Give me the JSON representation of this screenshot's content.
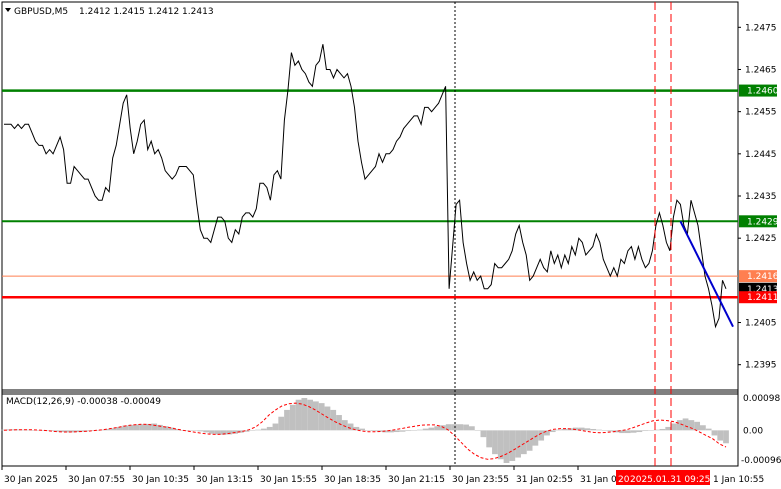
{
  "header": {
    "symbol": "GBPUSD,M5",
    "ohlc": "1.2412 1.2415 1.2412 1.2413",
    "dropdown_icon": "triangle-down-icon"
  },
  "macd": {
    "label": "MACD(12,26,9) -0.00038 -0.00049",
    "scale_top": "0.00098",
    "scale_mid": "0.00",
    "scale_bottom": "-0.00096"
  },
  "price_axis": {
    "ticks": [
      "1.2475",
      "1.2465",
      "1.2455",
      "1.2445",
      "1.2435",
      "1.2425",
      "1.2405",
      "1.2395"
    ],
    "badges": [
      {
        "text": "1.2460",
        "bg": "#008000",
        "fg": "#ffffff"
      },
      {
        "text": "1.2429",
        "bg": "#008000",
        "fg": "#ffffff"
      },
      {
        "text": "1.2416",
        "bg": "#ff7f50",
        "fg": "#ffffff"
      },
      {
        "text": "1.2413",
        "bg": "#000000",
        "fg": "#ffffff"
      },
      {
        "text": "1.2411",
        "bg": "#ff0000",
        "fg": "#ffffff"
      }
    ]
  },
  "time_axis": {
    "labels": [
      "30 Jan 2025",
      "30 Jan 07:55",
      "30 Jan 10:35",
      "30 Jan 13:15",
      "30 Jan 15:55",
      "30 Jan 18:35",
      "30 Jan 21:15",
      "30 Jan 23:55",
      "31 Jan 02:55",
      "31 Jan 05:"
    ],
    "highlight_left": "20",
    "highlight": "2025.01.31 09:25",
    "last_label": "1 Jan 10:55"
  },
  "chart_data": {
    "type": "line",
    "ylim": [
      1.2389,
      1.2481
    ],
    "levels": [
      {
        "price": 1.246,
        "color": "#008000"
      },
      {
        "price": 1.2429,
        "color": "#008000"
      },
      {
        "price": 1.2416,
        "color": "#ff7f50"
      },
      {
        "price": 1.2411,
        "color": "#ff0000"
      }
    ],
    "price_series": [
      1.2452,
      1.2452,
      1.2452,
      1.2451,
      1.2452,
      1.2451,
      1.2452,
      1.2452,
      1.245,
      1.2448,
      1.2447,
      1.2447,
      1.2445,
      1.2446,
      1.2445,
      1.2447,
      1.2449,
      1.2446,
      1.2438,
      1.2438,
      1.2442,
      1.2441,
      1.244,
      1.2439,
      1.2439,
      1.2437,
      1.2435,
      1.2434,
      1.2434,
      1.2437,
      1.2436,
      1.2444,
      1.2447,
      1.2452,
      1.2457,
      1.2459,
      1.2451,
      1.2445,
      1.2448,
      1.2452,
      1.2453,
      1.2446,
      1.2448,
      1.2445,
      1.2446,
      1.2444,
      1.2441,
      1.244,
      1.2439,
      1.244,
      1.2442,
      1.2442,
      1.2442,
      1.2441,
      1.244,
      1.2433,
      1.2427,
      1.2425,
      1.2425,
      1.2424,
      1.2427,
      1.243,
      1.243,
      1.2429,
      1.2425,
      1.2424,
      1.2427,
      1.2426,
      1.243,
      1.2431,
      1.2431,
      1.243,
      1.2432,
      1.2438,
      1.2438,
      1.2437,
      1.2434,
      1.244,
      1.2441,
      1.2439,
      1.2453,
      1.246,
      1.2469,
      1.2466,
      1.2467,
      1.2465,
      1.2464,
      1.2462,
      1.2461,
      1.2466,
      1.2467,
      1.2471,
      1.2465,
      1.2465,
      1.2463,
      1.2465,
      1.2464,
      1.2463,
      1.2464,
      1.2461,
      1.2456,
      1.2448,
      1.2443,
      1.2439,
      1.244,
      1.2441,
      1.2442,
      1.2445,
      1.2443,
      1.2445,
      1.2445,
      1.2446,
      1.2448,
      1.2449,
      1.2451,
      1.2452,
      1.2453,
      1.2454,
      1.2454,
      1.2452,
      1.2456,
      1.2456,
      1.2455,
      1.2456,
      1.2457,
      1.2459,
      1.2461,
      1.2413,
      1.2423,
      1.2433,
      1.2434,
      1.2424,
      1.2419,
      1.2415,
      1.2417,
      1.2415,
      1.2416,
      1.2413,
      1.2413,
      1.2414,
      1.2419,
      1.2418,
      1.2418,
      1.2419,
      1.242,
      1.2422,
      1.2426,
      1.2428,
      1.2424,
      1.2421,
      1.2415,
      1.2416,
      1.2418,
      1.242,
      1.2418,
      1.2417,
      1.2422,
      1.2419,
      1.2421,
      1.2418,
      1.2421,
      1.2419,
      1.2423,
      1.2421,
      1.2425,
      1.2424,
      1.2421,
      1.2422,
      1.2423,
      1.2426,
      1.2424,
      1.242,
      1.2418,
      1.2416,
      1.2418,
      1.2416,
      1.242,
      1.2419,
      1.2422,
      1.2423,
      1.242,
      1.2423,
      1.242,
      1.2418,
      1.2419,
      1.2422,
      1.2428,
      1.2431,
      1.2428,
      1.2424,
      1.2422,
      1.243,
      1.2434,
      1.2433,
      1.2428,
      1.2426,
      1.2434,
      1.2431,
      1.2428,
      1.2422,
      1.2416,
      1.2413,
      1.2409,
      1.2404,
      1.2406,
      1.2415,
      1.2413
    ],
    "trendline": {
      "color": "#0000cd",
      "from": {
        "x_index": 193,
        "price": 1.2429
      },
      "to": {
        "x_index": 208,
        "price": 1.2404
      }
    },
    "macd_histogram": [
      2e-05,
      3e-05,
      3e-05,
      2e-05,
      2e-05,
      1e-05,
      1e-05,
      0.0,
      -2e-05,
      -4e-05,
      -5e-05,
      -6e-05,
      -6e-05,
      -5e-05,
      -4e-05,
      -2e-05,
      0.0,
      2e-05,
      4e-05,
      6e-05,
      0.0001,
      0.00014,
      0.00016,
      0.00017,
      0.00018,
      0.00019,
      0.0002,
      0.00016,
      0.00012,
      8e-05,
      4e-05,
      0.0,
      0.0,
      0.0,
      -3e-05,
      -6e-05,
      -0.0001,
      -0.00012,
      -0.00013,
      -0.00012,
      -0.0001,
      -7e-05,
      -4e-05,
      -1e-05,
      2e-05,
      5e-05,
      0.0001,
      0.0002,
      0.0004,
      0.0006,
      0.00075,
      0.0009,
      0.00095,
      0.0009,
      0.00085,
      0.0008,
      0.0007,
      0.0006,
      0.00045,
      0.0003,
      0.0002,
      0.0001,
      5e-05,
      0.0,
      -2e-05,
      -4e-05,
      -6e-05,
      -6e-05,
      -5e-05,
      -4e-05,
      -2e-05,
      0.0,
      2e-05,
      5e-05,
      8e-05,
      0.00012,
      0.00015,
      0.00018,
      0.00018,
      0.00018,
      0.00017,
      0.00012,
      0.0,
      -0.0002,
      -0.0005,
      -0.0007,
      -0.00085,
      -0.00096,
      -0.0009,
      -0.0008,
      -0.0007,
      -0.0006,
      -0.00045,
      -0.0003,
      -0.00015,
      -5e-05,
      2e-05,
      4e-05,
      6e-05,
      8e-05,
      8e-05,
      6e-05,
      4e-05,
      2e-05,
      0.0,
      -3e-05,
      -6e-05,
      -8e-05,
      -8e-05,
      -7e-05,
      -5e-05,
      -2e-05,
      0.0,
      2e-05,
      4e-05,
      0.0001,
      0.0002,
      0.0003,
      0.00035,
      0.0003,
      0.00025,
      0.00015,
      5e-05,
      -0.00015,
      -0.0003,
      -0.00038
    ],
    "macd_signal": [
      0.0,
      1e-05,
      2e-05,
      2e-05,
      2e-05,
      1e-05,
      0.0,
      -2e-05,
      -4e-05,
      -5e-05,
      -5e-05,
      -4e-05,
      -3e-05,
      -2e-05,
      0.0,
      2e-05,
      5e-05,
      8e-05,
      0.00012,
      0.00015,
      0.00017,
      0.00018,
      0.00017,
      0.00014,
      0.00011,
      8e-05,
      4e-05,
      0.0,
      -3e-05,
      -6e-05,
      -9e-05,
      -0.00011,
      -0.00012,
      -0.00011,
      -9e-05,
      -6e-05,
      -3e-05,
      2e-05,
      0.0001,
      0.00025,
      0.00045,
      0.0006,
      0.00072,
      0.00078,
      0.0008,
      0.00077,
      0.0007,
      0.0006,
      0.00048,
      0.00036,
      0.00025,
      0.00016,
      8e-05,
      2e-05,
      -2e-05,
      -4e-05,
      -4e-05,
      -3e-05,
      -1e-05,
      2e-05,
      5e-05,
      9e-05,
      0.00012,
      0.00015,
      0.00016,
      0.00016,
      0.00012,
      2e-05,
      -0.00015,
      -0.00035,
      -0.00055,
      -0.0007,
      -0.0008,
      -0.00085,
      -0.00083,
      -0.00077,
      -0.00068,
      -0.00057,
      -0.00045,
      -0.00033,
      -0.00021,
      -0.0001,
      -2e-05,
      3e-05,
      5e-05,
      5e-05,
      3e-05,
      0.0,
      -3e-05,
      -6e-05,
      -7e-05,
      -6e-05,
      -4e-05,
      -1e-05,
      2e-05,
      8e-05,
      0.00015,
      0.00022,
      0.00028,
      0.0003,
      0.00029,
      0.00026,
      0.0002,
      0.00012,
      5e-05,
      -5e-05,
      -0.00015,
      -0.00025,
      -0.0004,
      -0.00049
    ]
  }
}
